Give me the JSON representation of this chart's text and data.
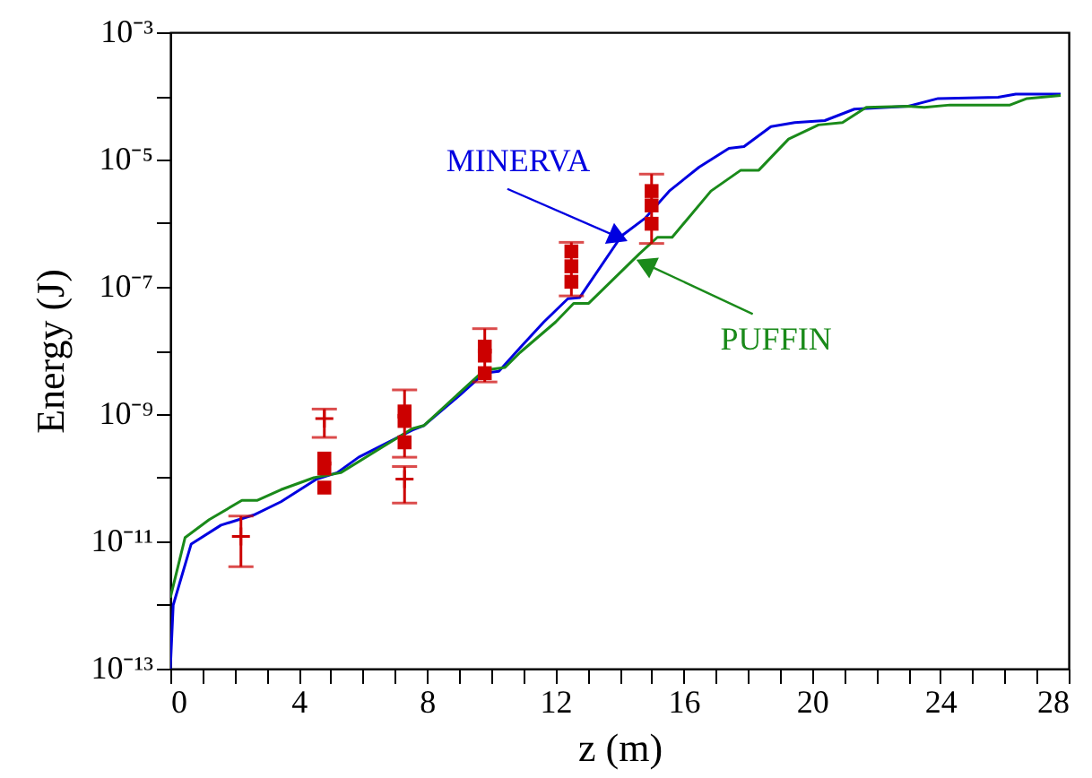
{
  "chart_data": {
    "type": "line",
    "xlabel": "z (m)",
    "ylabel": "Energy (J)",
    "log": "y",
    "grid": false,
    "line_style": "solid",
    "xlim": [
      0,
      28
    ],
    "xticks": [
      0,
      {
        "value": 1,
        "label": null
      },
      {
        "value": 2,
        "label": null
      },
      {
        "value": 3,
        "label": null
      },
      4,
      {
        "value": 5,
        "label": null
      },
      {
        "value": 6,
        "label": null
      },
      {
        "value": 7,
        "label": null
      },
      8,
      {
        "value": 9,
        "label": null
      },
      {
        "value": 10,
        "label": null
      },
      {
        "value": 11,
        "label": null
      },
      12,
      {
        "value": 13,
        "label": null
      },
      {
        "value": 14,
        "label": null
      },
      {
        "value": 15,
        "label": null
      },
      16,
      {
        "value": 17,
        "label": null
      },
      {
        "value": 18,
        "label": null
      },
      {
        "value": 19,
        "label": null
      },
      20,
      {
        "value": 21,
        "label": null
      },
      {
        "value": 22,
        "label": null
      },
      {
        "value": 23,
        "label": null
      },
      24,
      {
        "value": 25,
        "label": null
      },
      {
        "value": 26,
        "label": null
      },
      {
        "value": 27,
        "label": null
      },
      28
    ],
    "ylim": [
      1e-13,
      0.001
    ],
    "yticks": [
      {
        "value": 1e-13,
        "label": "10⁻¹³"
      },
      {
        "value": 1e-12,
        "label": null
      },
      {
        "value": 1e-11,
        "label": "10⁻¹¹"
      },
      {
        "value": 1e-10,
        "label": null
      },
      {
        "value": 1e-09,
        "label": "10⁻⁹"
      },
      {
        "value": 1e-08,
        "label": null
      },
      {
        "value": 1e-07,
        "label": "10⁻⁷"
      },
      {
        "value": 1e-06,
        "label": null
      },
      {
        "value": 1e-05,
        "label": "10⁻⁵"
      },
      {
        "value": 0.0001,
        "label": null
      },
      {
        "value": 0.001,
        "label": "10⁻³"
      }
    ],
    "annotations": [
      {
        "text": "MINERVA",
        "x": 13.97,
        "y": 6e-07
      },
      {
        "text": "PUFFIN",
        "x": 14.8,
        "y": 2.3e-07
      }
    ],
    "series": [
      {
        "color": "#0000e0",
        "x": [
          0,
          0.09,
          0.65,
          1.58,
          2.6,
          3.45,
          4.56,
          5.2,
          5.87,
          7.54,
          7.9,
          9.03,
          9.78,
          10.24,
          10.9,
          11.64,
          12.39,
          12.76,
          14.06,
          14.8,
          15.55,
          16.48,
          17.41,
          17.88,
          18.72,
          19.46,
          20.4,
          21.32,
          23,
          23.93,
          25.8,
          26.35,
          27.75
        ],
        "values": [
          1e-13,
          1e-12,
          9.1e-12,
          1.8e-11,
          2.6e-11,
          4.2e-11,
          9.5e-11,
          1.2e-10,
          2.1e-10,
          5.6e-10,
          6.6e-10,
          2e-09,
          4.4e-09,
          4.7e-09,
          1.1e-08,
          2.8e-08,
          6.5e-08,
          6.8e-08,
          6.3e-07,
          1.2e-06,
          3.2e-06,
          7.6e-06,
          1.5e-05,
          1.6e-05,
          3.3e-05,
          3.8e-05,
          4.1e-05,
          6.2e-05,
          6.9e-05,
          9.1e-05,
          9.5e-05,
          0.000107,
          0.000107
        ]
      },
      {
        "color": "#1a8a1a",
        "x": [
          0,
          0.46,
          1.21,
          2.23,
          2.7,
          3.45,
          4.47,
          5.31,
          7.54,
          7.9,
          9.78,
          10.43,
          10.9,
          12.01,
          12.57,
          13.04,
          14.62,
          15.18,
          15.64,
          16.85,
          17.78,
          18.34,
          19.27,
          20.2,
          20.95,
          21.69,
          23,
          23.5,
          24.3,
          26.17,
          26.7,
          27.75
        ],
        "values": [
          1.3e-12,
          1.15e-11,
          2.2e-11,
          4.4e-11,
          4.4e-11,
          6.5e-11,
          1e-10,
          1.2e-10,
          5.9e-10,
          6.6e-10,
          4.9e-09,
          5.4e-09,
          9.3e-09,
          2.8e-08,
          5.5e-08,
          5.5e-08,
          3.3e-07,
          6e-07,
          6e-07,
          3.2e-06,
          6.8e-06,
          6.8e-06,
          2.1e-05,
          3.5e-05,
          3.8e-05,
          6.6e-05,
          6.9e-05,
          6.6e-05,
          7.2e-05,
          7.2e-05,
          9.1e-05,
          0.000102
        ]
      },
      {
        "type": "scatter",
        "marker": "square",
        "color": "#cc0000",
        "x": [
          4.8,
          4.8,
          4.8,
          7.3,
          7.3,
          7.3,
          9.8,
          9.8,
          9.8,
          12.5,
          12.5,
          12.5,
          15,
          15,
          15
        ],
        "values": [
          2e-10,
          1.4e-10,
          7e-11,
          1.1e-09,
          7.8e-10,
          3.6e-10,
          1.15e-08,
          8.3e-09,
          4.4e-09,
          3.6e-07,
          2.1e-07,
          1.2e-07,
          3.2e-06,
          1.9e-06,
          9.8e-07
        ],
        "errors": [
          null,
          null,
          null,
          [
            2.1e-10,
            2.4e-09
          ],
          null,
          null,
          [
            3.2e-09,
            2.2e-08
          ],
          null,
          null,
          [
            7.2e-08,
            5e-07
          ],
          null,
          null,
          [
            4.8e-07,
            5.9e-06
          ],
          null,
          null
        ]
      },
      {
        "type": "scatter",
        "marker": "cross",
        "color": "#cc0000",
        "x": [
          2.2,
          4.8,
          7.3
        ],
        "values": [
          1.2e-11,
          8.5e-10,
          9.5e-11
        ],
        "errors": [
          [
            4e-12,
            2.5e-11
          ],
          [
            4.3e-10,
            1.2e-09
          ],
          [
            4e-11,
            1.5e-10
          ]
        ]
      }
    ]
  }
}
